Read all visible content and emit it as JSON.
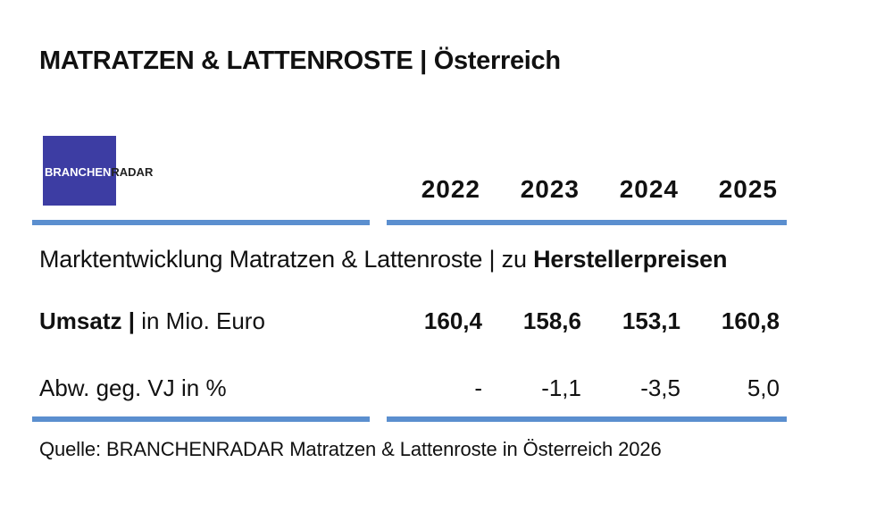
{
  "title": "MATRATZEN & LATTENROSTE | Österreich",
  "logo": {
    "line1": "BRANCHEN",
    "line2": "RADAR",
    "color": "#3d3da3"
  },
  "years": [
    "2022",
    "2023",
    "2024",
    "2025"
  ],
  "subtitle": {
    "regular": "Marktentwicklung Matratzen & Lattenroste | zu ",
    "bold": "Herstellerpreisen"
  },
  "rows": [
    {
      "label_bold": "Umsatz |",
      "label_regular": " in Mio. Euro",
      "values": [
        "160,4",
        "158,6",
        "153,1",
        "160,8"
      ]
    },
    {
      "label_bold": "",
      "label_regular": "Abw. geg. VJ in %",
      "values": [
        "-",
        "-1,1",
        "-3,5",
        "5,0"
      ]
    }
  ],
  "source": "Quelle: BRANCHENRADAR Matratzen & Lattenroste in Österreich 2026",
  "accent_color": "#5b8fcf"
}
